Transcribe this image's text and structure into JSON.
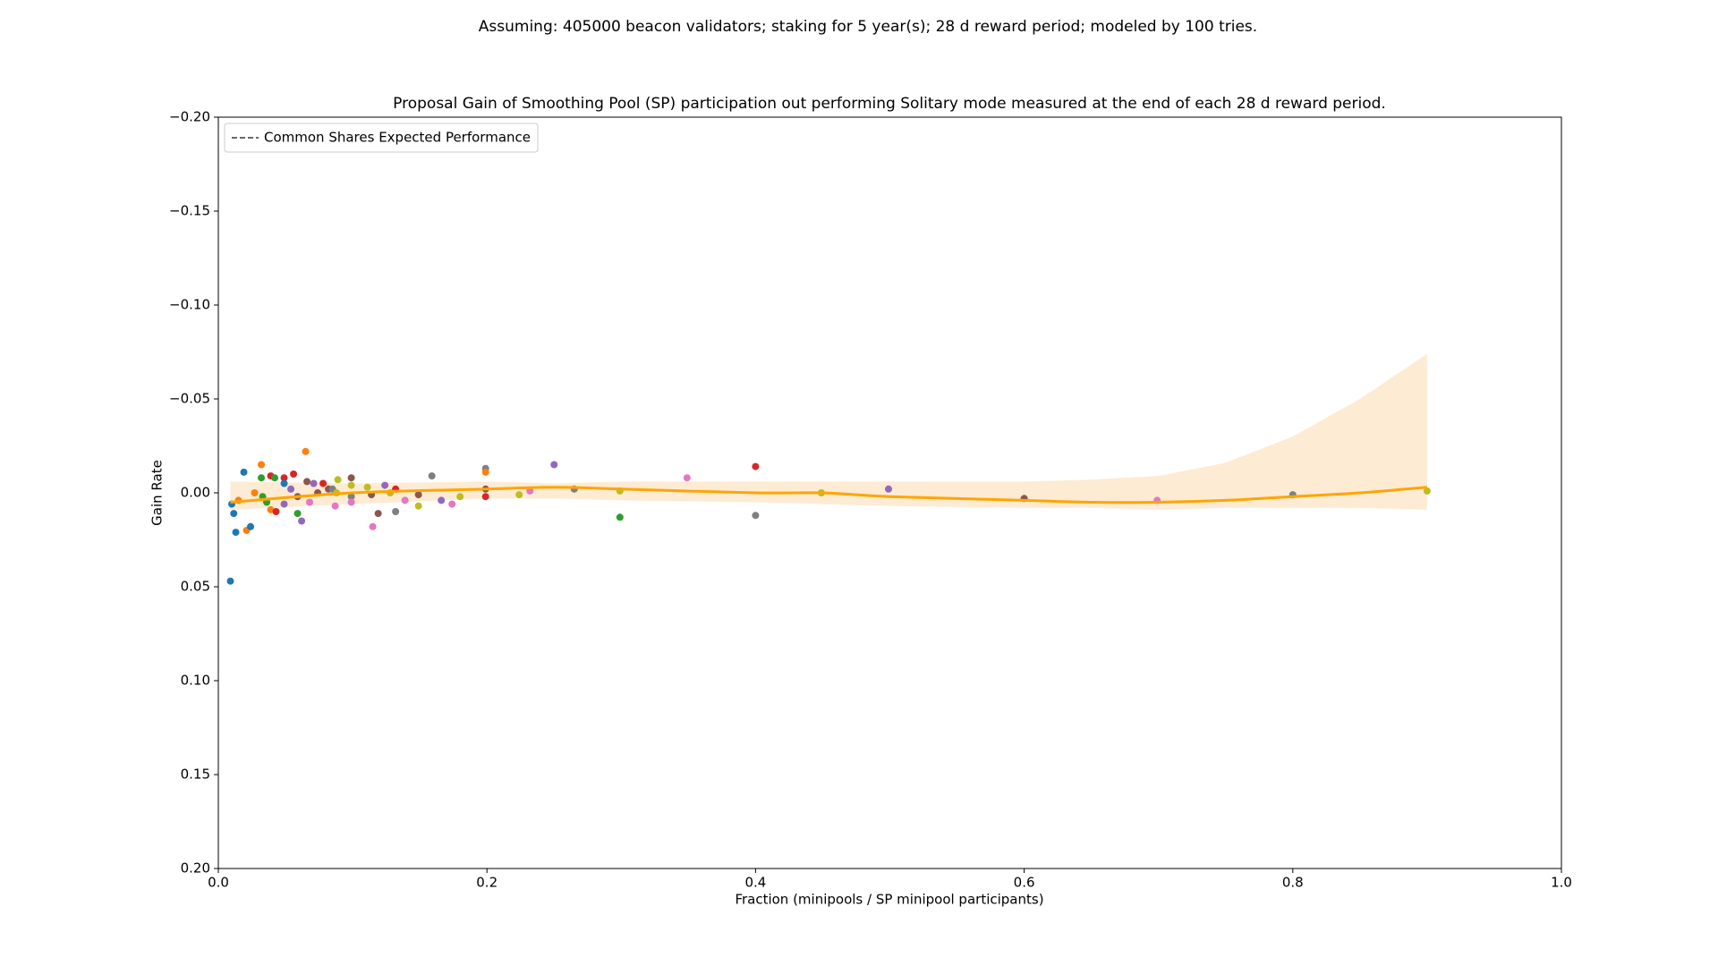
{
  "chart_data": {
    "type": "scatter",
    "suptitle": "Assuming: 405000 beacon validators; staking for 5 year(s); 28 d reward period; modeled by 100 tries.",
    "title": "Proposal Gain of Smoothing Pool (SP) participation out performing Solitary mode measured at the end of each 28 d reward period.",
    "xlabel": "Fraction (minipools / SP minipool participants)",
    "ylabel": "Gain Rate",
    "xlim": [
      0,
      1
    ],
    "ylim": [
      0.2,
      -0.2
    ],
    "xticks": [
      {
        "value": 0,
        "label": "0.0"
      },
      0.2,
      0.4,
      0.6,
      0.8,
      {
        "value": 1,
        "label": "1.0"
      }
    ],
    "yticks": [
      {
        "value": -0.2,
        "label": "−0.20"
      },
      {
        "value": -0.15,
        "label": "−0.15"
      },
      {
        "value": -0.1,
        "label": "−0.10"
      },
      {
        "value": -0.05,
        "label": "−0.05"
      },
      {
        "value": 0,
        "label": "0.00"
      },
      {
        "value": 0.05,
        "label": "0.05"
      },
      {
        "value": 0.1,
        "label": "0.10"
      },
      {
        "value": 0.15,
        "label": "0.15"
      },
      {
        "value": 0.2,
        "label": "0.20"
      }
    ],
    "legend": "upper left",
    "series": [
      {
        "name": "Common Shares Expected Performance",
        "color": "#555555",
        "line_style": "dashed"
      }
    ],
    "points": {
      "x": [
        0.009,
        0.0115,
        0.013,
        0.01,
        0.015,
        0.019,
        0.021,
        0.024,
        0.027,
        0.032,
        0.032,
        0.033,
        0.036,
        0.039,
        0.039,
        0.042,
        0.043,
        0.049,
        0.049,
        0.049,
        0.054,
        0.056,
        0.059,
        0.059,
        0.062,
        0.065,
        0.066,
        0.068,
        0.071,
        0.074,
        0.078,
        0.082,
        0.085,
        0.087,
        0.088,
        0.089,
        0.099,
        0.099,
        0.099,
        0.099,
        0.111,
        0.114,
        0.115,
        0.119,
        0.124,
        0.128,
        0.132,
        0.132,
        0.139,
        0.149,
        0.149,
        0.159,
        0.166,
        0.174,
        0.18,
        0.199,
        0.199,
        0.199,
        0.199,
        0.224,
        0.232,
        0.25,
        0.265,
        0.299,
        0.299,
        0.349,
        0.4,
        0.4,
        0.449,
        0.499,
        0.6,
        0.699,
        0.8,
        0.9
      ],
      "values": [
        0.047,
        0.011,
        0.021,
        0.006,
        0.004,
        -0.011,
        0.02,
        0.018,
        0.0,
        -0.015,
        -0.008,
        0.002,
        0.005,
        -0.009,
        0.009,
        -0.008,
        0.01,
        -0.008,
        -0.005,
        0.006,
        -0.002,
        -0.01,
        0.011,
        0.002,
        0.015,
        -0.022,
        -0.006,
        0.005,
        -0.005,
        0.0,
        -0.005,
        -0.002,
        -0.002,
        0.007,
        0.0,
        -0.007,
        -0.008,
        -0.004,
        0.002,
        0.005,
        -0.003,
        0.001,
        0.018,
        0.011,
        -0.004,
        0.0,
        0.01,
        -0.002,
        0.004,
        0.001,
        0.007,
        -0.009,
        0.004,
        0.006,
        0.002,
        -0.013,
        -0.011,
        -0.002,
        0.002,
        0.001,
        -0.001,
        -0.015,
        -0.002,
        -0.001,
        0.013,
        -0.008,
        -0.014,
        0.012,
        0.0,
        -0.002,
        0.003,
        0.004,
        0.001,
        -0.001
      ],
      "colors": [
        "#1f77b4",
        "#1f77b4",
        "#1f77b4",
        "#1f77b4",
        "#ff7f0e",
        "#1f77b4",
        "#ff7f0e",
        "#1f77b4",
        "#ff7f0e",
        "#ff7f0e",
        "#2ca02c",
        "#2ca02c",
        "#2ca02c",
        "#d62728",
        "#ff7f0e",
        "#2ca02c",
        "#d62728",
        "#d62728",
        "#1f77b4",
        "#9467bd",
        "#9467bd",
        "#d62728",
        "#2ca02c",
        "#8c564b",
        "#9467bd",
        "#ff7f0e",
        "#8c564b",
        "#e377c2",
        "#9467bd",
        "#8c564b",
        "#d62728",
        "#8c564b",
        "#7f7f7f",
        "#e377c2",
        "#bcbd22",
        "#bcbd22",
        "#8c564b",
        "#bcbd22",
        "#7f7f7f",
        "#e377c2",
        "#bcbd22",
        "#8c564b",
        "#e377c2",
        "#8c564b",
        "#9467bd",
        "#bcbd22",
        "#7f7f7f",
        "#d62728",
        "#e377c2",
        "#8c564b",
        "#bcbd22",
        "#7f7f7f",
        "#9467bd",
        "#e377c2",
        "#bcbd22",
        "#7f7f7f",
        "#ff7f0e",
        "#8c564b",
        "#d62728",
        "#bcbd22",
        "#e377c2",
        "#9467bd",
        "#7f7f7f",
        "#bcbd22",
        "#2ca02c",
        "#e377c2",
        "#d62728",
        "#7f7f7f",
        "#bcbd22",
        "#9467bd",
        "#8c564b",
        "#e377c2",
        "#7f7f7f",
        "#bcbd22"
      ]
    },
    "fit": {
      "color": "#ffa500",
      "band_color": "#fdebd3",
      "x": [
        0.009,
        0.1,
        0.2,
        0.25,
        0.3,
        0.4,
        0.45,
        0.5,
        0.6,
        0.65,
        0.7,
        0.75,
        0.8,
        0.85,
        0.9
      ],
      "values": [
        0.005,
        0.0,
        -0.002,
        -0.003,
        -0.002,
        0.0,
        0.0,
        0.002,
        0.004,
        0.005,
        0.005,
        0.004,
        0.002,
        -0.0,
        -0.003
      ],
      "band_upper": [
        -0.006,
        -0.005,
        -0.006,
        -0.005,
        -0.006,
        -0.006,
        -0.006,
        -0.006,
        -0.006,
        -0.007,
        -0.009,
        -0.016,
        -0.03,
        -0.05,
        -0.074
      ],
      "band_lower": [
        0.009,
        0.006,
        0.003,
        0.003,
        0.004,
        0.005,
        0.006,
        0.007,
        0.008,
        0.008,
        0.009,
        0.008,
        0.008,
        0.008,
        0.009
      ]
    }
  }
}
